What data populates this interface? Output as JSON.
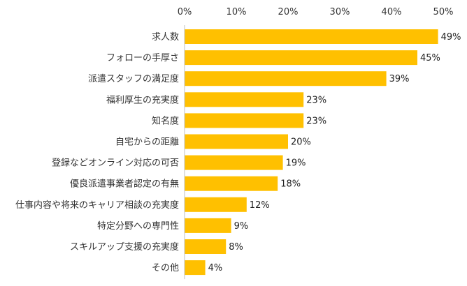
{
  "chart_data": {
    "type": "bar",
    "orientation": "horizontal",
    "categories": [
      "求人数",
      "フォローの手厚さ",
      "派遣スタッフの満足度",
      "福利厚生の充実度",
      "知名度",
      "自宅からの距離",
      "登録などオンライン対応の可否",
      "優良派遣事業者認定の有無",
      "仕事内容や将来のキャリア相談の充実度",
      "特定分野への専門性",
      "スキルアップ支援の充実度",
      "その他"
    ],
    "values": [
      49,
      45,
      39,
      23,
      23,
      20,
      19,
      18,
      12,
      9,
      8,
      4
    ],
    "value_suffix": "%",
    "xlim": [
      0,
      50
    ],
    "ticks": [
      0,
      10,
      20,
      30,
      40,
      50
    ],
    "tick_labels": [
      "0%",
      "10%",
      "20%",
      "30%",
      "40%",
      "50%"
    ],
    "axis_position": "top",
    "grid": false,
    "bar_color": "#FFC000",
    "axis_color": "#BFBFBF"
  }
}
